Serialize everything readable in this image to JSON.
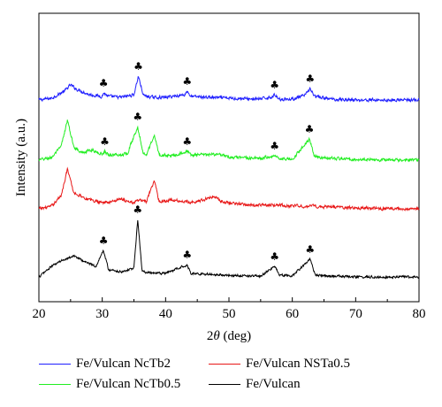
{
  "chart_data": {
    "type": "line",
    "title": "",
    "xlabel_prefix": "2",
    "xlabel_theta": "θ",
    "xlabel_suffix": " (deg)",
    "ylabel": "Intensity (a.u.)",
    "xlim": [
      20,
      80
    ],
    "xticks": [
      "20",
      "30",
      "40",
      "50",
      "60",
      "70",
      "80"
    ],
    "grid": false,
    "legend_position": "bottom",
    "peak_marker": "♣",
    "series": [
      {
        "name": "Fe/Vulcan NcTb2",
        "color": "#1f1fff",
        "baseline": 113,
        "noise": 2.5,
        "x": [
          20,
          22,
          24,
          25,
          26,
          28,
          30,
          30.2,
          31,
          33,
          35,
          35.7,
          36.5,
          38,
          40,
          43,
          43.4,
          44,
          47,
          50,
          55,
          57,
          57.2,
          58,
          60,
          62,
          62.8,
          63.5,
          66,
          70,
          75,
          80
        ],
        "y": [
          0,
          2,
          10,
          17,
          12,
          6,
          4,
          8,
          4,
          3,
          6,
          27,
          5,
          3,
          3,
          6,
          10,
          4,
          3,
          2,
          1,
          4,
          6,
          1,
          1,
          5,
          13,
          4,
          1,
          0,
          0,
          0
        ],
        "markers": [
          30.2,
          35.7,
          43.4,
          57.2,
          62.8
        ]
      },
      {
        "name": "Fe/Vulcan NcTb0.5",
        "color": "#22ee22",
        "baseline": 181,
        "noise": 2.5,
        "x": [
          20,
          22,
          23.5,
          24.5,
          25.5,
          27,
          28.5,
          29,
          30,
          30.4,
          31,
          33,
          34,
          35.6,
          36.5,
          37,
          38.2,
          39,
          41,
          43.4,
          44,
          47,
          48,
          50,
          55,
          57.2,
          58,
          60,
          62.7,
          63.5,
          66,
          70,
          75,
          80
        ],
        "y": [
          0,
          3,
          15,
          45,
          15,
          8,
          12,
          9,
          7,
          10,
          6,
          6,
          8,
          38,
          7,
          7,
          28,
          6,
          5,
          10,
          6,
          6,
          7,
          3,
          2,
          5,
          2,
          1,
          24,
          4,
          2,
          1,
          0,
          0
        ],
        "markers": [
          30.4,
          35.6,
          43.4,
          57.2,
          62.7
        ]
      },
      {
        "name": "Fe/Vulcan NSTa0.5",
        "color": "#e81818",
        "baseline": 236,
        "noise": 2.5,
        "x": [
          20,
          22,
          23.5,
          24.5,
          25.5,
          26.5,
          28,
          29.5,
          31,
          33,
          34,
          35,
          36,
          37,
          38.2,
          39,
          41,
          43,
          45,
          47.5,
          49,
          52,
          55,
          58,
          60,
          63,
          66,
          70,
          75,
          80
        ],
        "y": [
          0,
          3,
          15,
          45,
          18,
          15,
          10,
          8,
          7,
          12,
          8,
          7,
          10,
          8,
          32,
          8,
          10,
          8,
          8,
          14,
          8,
          5,
          4,
          4,
          3,
          3,
          2,
          1,
          0,
          0
        ],
        "markers": []
      },
      {
        "name": "Fe/Vulcan",
        "color": "#000000",
        "baseline": 313,
        "noise": 2,
        "x": [
          20,
          22,
          24,
          25.5,
          27,
          29,
          30.2,
          31,
          33,
          35,
          35.6,
          36.3,
          38,
          40,
          43.4,
          44,
          47,
          50,
          55,
          57.2,
          58,
          60,
          62.8,
          63.6,
          66,
          70,
          75,
          80
        ],
        "y": [
          0,
          12,
          20,
          24,
          18,
          12,
          30,
          8,
          6,
          10,
          65,
          6,
          4,
          4,
          14,
          4,
          3,
          2,
          1,
          12,
          2,
          1,
          20,
          2,
          1,
          0,
          0,
          0
        ],
        "markers": [
          30.2,
          35.6,
          43.4,
          57.2,
          62.8
        ]
      }
    ]
  }
}
